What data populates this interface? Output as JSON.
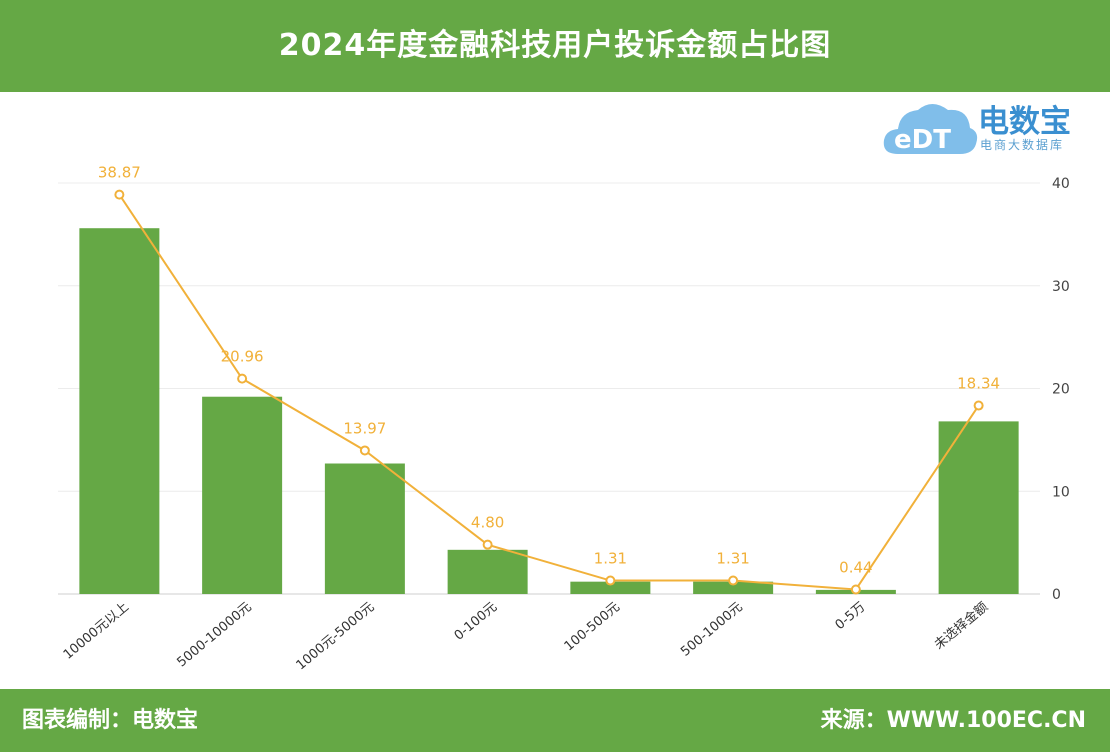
{
  "header": {
    "title": "2024年度金融科技用户投诉金额占比图"
  },
  "logo": {
    "mark": "eDT",
    "name": "电数宝",
    "tagline": "电商大数据库"
  },
  "footer": {
    "left": "图表编制：电数宝",
    "right": "来源：WWW.100EC.CN"
  },
  "colors": {
    "bar": "#65a845",
    "line": "#f1b13a",
    "header": "#65a845"
  },
  "chart_data": {
    "type": "bar",
    "categories": [
      "10000元以上",
      "5000-10000元",
      "1000元-5000元",
      "0-100元",
      "100-500元",
      "500-1000元",
      "0-5万",
      "未选择金额"
    ],
    "series": [
      {
        "type": "bar",
        "values": [
          35.6,
          19.2,
          12.7,
          4.3,
          1.2,
          1.2,
          0.4,
          16.8
        ]
      },
      {
        "type": "line",
        "values": [
          38.87,
          20.96,
          13.97,
          4.8,
          1.31,
          1.31,
          0.44,
          18.34
        ],
        "labels": [
          "38.87",
          "20.96",
          "13.97",
          "4.80",
          "1.31",
          "1.31",
          "0.44",
          "18.34"
        ]
      }
    ],
    "yaxis": {
      "position": "right",
      "ticks": [
        "0",
        "10",
        "20",
        "30",
        "40"
      ],
      "ylim": [
        0,
        40
      ]
    },
    "grid": true
  }
}
